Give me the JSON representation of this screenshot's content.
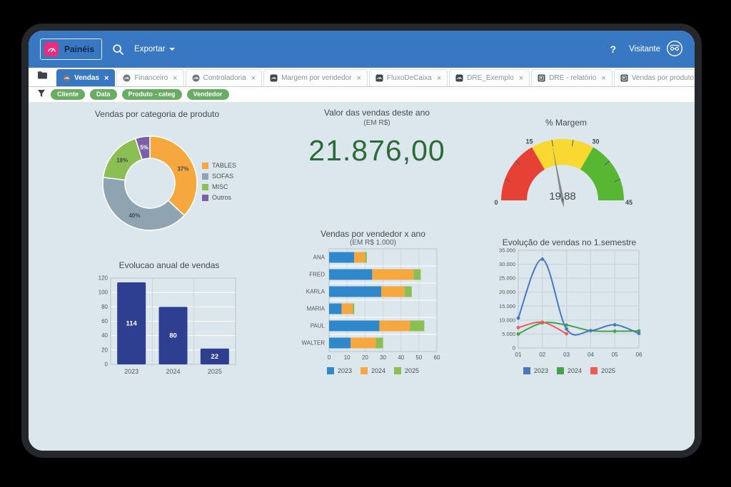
{
  "topbar": {
    "app_button_label": "Painéis",
    "export_label": "Exportar",
    "help_label": "?",
    "user_label": "Visitante",
    "bg_color": "#3878c2",
    "accent_pink": "#ee2a7b"
  },
  "tab_bar": {
    "close_glyph": "×",
    "tabs": [
      {
        "label": "Vendas",
        "icon": "gauge-circle-icon",
        "active": true
      },
      {
        "label": "Financeiro",
        "icon": "gauge-circle-icon",
        "active": false
      },
      {
        "label": "Controladoria",
        "icon": "gauge-circle-icon",
        "active": false
      },
      {
        "label": "Margem por vendedor",
        "icon": "gauge-square-icon",
        "active": false
      },
      {
        "label": "FluxoDeCaixa",
        "icon": "gauge-square-icon",
        "active": false
      },
      {
        "label": "DRE_Exemplo",
        "icon": "gauge-square-icon",
        "active": false
      },
      {
        "label": "DRE - relatório",
        "icon": "report-icon",
        "active": false
      },
      {
        "label": "Vendas por produto",
        "icon": "report-icon",
        "active": false
      }
    ]
  },
  "filter_bar": {
    "chips": [
      "Cliente",
      "Data",
      "Produto - categ",
      "Vendedor"
    ],
    "chip_color": "#69ad63"
  },
  "chart_data": [
    {
      "id": "category-donut",
      "type": "pie",
      "donut": true,
      "title": "Vendas por categoria de produto",
      "labels": [
        "TABLES",
        "SOFAS",
        "MISC",
        "Outros"
      ],
      "values": [
        37,
        40,
        18,
        5
      ],
      "value_labels": [
        "37%",
        "40%",
        "18%",
        "5%"
      ],
      "colors": [
        "#f6a73e",
        "#8ea4b0",
        "#8cbf53",
        "#7b5fa9"
      ],
      "label_colors": [
        "#46494d",
        "#46494d",
        "#46494d",
        "#ffffff"
      ],
      "legend_position": "right"
    },
    {
      "id": "sales-kpi",
      "type": "number",
      "title": "Valor das vendas deste ano",
      "subtitle": "(EM R$)",
      "value": "21.876,00",
      "color": "#2c6a38"
    },
    {
      "id": "margin-gauge",
      "type": "gauge",
      "title": "% Margem",
      "min": 0,
      "max": 45,
      "value": 19.88,
      "value_label": "19,88",
      "major_ticks": [
        0,
        15,
        30,
        45
      ],
      "minor_ticks": [
        5,
        10,
        20,
        25,
        35,
        40
      ],
      "zones": [
        {
          "from": 0,
          "to": 15,
          "color": "#e74135"
        },
        {
          "from": 15,
          "to": 30,
          "color": "#f8d831"
        },
        {
          "from": 30,
          "to": 45,
          "color": "#57b733"
        }
      ]
    },
    {
      "id": "annual-bars",
      "type": "bar",
      "title": "Evolucao anual de vendas",
      "categories": [
        "2023",
        "2024",
        "2025"
      ],
      "values": [
        114,
        80,
        22
      ],
      "ylim": [
        0,
        120
      ],
      "yticks": [
        0,
        20,
        40,
        60,
        80,
        100,
        120
      ],
      "bar_color": "#2e3e91",
      "grid": true
    },
    {
      "id": "seller-stacked-bars",
      "type": "stacked-bar-horizontal",
      "title": "Vendas por vendedor x ano",
      "subtitle": "(EM R$ 1.000)",
      "categories": [
        "ANA",
        "FRED",
        "KARLA",
        "MARIA",
        "PAUL",
        "WALTER"
      ],
      "series": [
        {
          "name": "2023",
          "color": "#2f88c9",
          "values": [
            14,
            24,
            29,
            7,
            28,
            12
          ]
        },
        {
          "name": "2024",
          "color": "#f6a73e",
          "values": [
            6,
            23,
            13,
            6,
            17,
            14
          ]
        },
        {
          "name": "2025",
          "color": "#8cbf53",
          "values": [
            1,
            4,
            4,
            1,
            8,
            4
          ]
        }
      ],
      "xlim": [
        0,
        60
      ],
      "xticks": [
        0,
        10,
        20,
        30,
        40,
        50,
        60
      ],
      "legend_position": "bottom",
      "grid": true
    },
    {
      "id": "semester-lines",
      "type": "line",
      "title": "Evolução de vendas no 1.semestre",
      "x": [
        "01",
        "02",
        "03",
        "04",
        "05",
        "06"
      ],
      "series": [
        {
          "name": "2023",
          "color": "#4879bf",
          "values": [
            10700,
            31800,
            6800,
            6200,
            8300,
            5200
          ]
        },
        {
          "name": "2024",
          "color": "#43a24a",
          "values": [
            5000,
            9000,
            8200,
            6200,
            6000,
            6100
          ]
        },
        {
          "name": "2025",
          "color": "#ef5a52",
          "values": [
            7300,
            9200,
            5100
          ]
        }
      ],
      "ylim": [
        0,
        35000
      ],
      "ytick_values": [
        0,
        5000,
        10000,
        15000,
        20000,
        25000,
        30000,
        35000
      ],
      "ytick_labels": [
        "0",
        "5.000",
        "10.000",
        "15.000",
        "20.000",
        "25.000",
        "30.000",
        "35.000"
      ],
      "legend_position": "bottom",
      "grid": true
    }
  ]
}
